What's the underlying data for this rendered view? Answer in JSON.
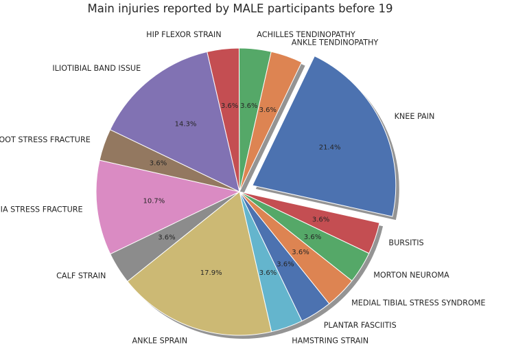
{
  "chart_data": {
    "type": "pie",
    "title": "Main injuries reported by MALE participants before 19",
    "slices": [
      {
        "label": "KNEE PAIN",
        "value": 21.4,
        "pct_label": "21.4%",
        "color": "#4c72b0",
        "explode": true
      },
      {
        "label": "BURSITIS",
        "value": 3.6,
        "pct_label": "3.6%",
        "color": "#c44e52"
      },
      {
        "label": "MORTON NEUROMA",
        "value": 3.6,
        "pct_label": "3.6%",
        "color": "#55a868"
      },
      {
        "label": "MEDIAL TIBIAL STRESS SYNDROME",
        "value": 3.6,
        "pct_label": "3.6%",
        "color": "#dd8452"
      },
      {
        "label": "PLANTAR FASCIITIS",
        "value": 3.6,
        "pct_label": "3.6%",
        "color": "#4c72b0"
      },
      {
        "label": "HAMSTRING STRAIN",
        "value": 3.6,
        "pct_label": "3.6%",
        "color": "#64b5cd"
      },
      {
        "label": "ANKLE SPRAIN",
        "value": 17.9,
        "pct_label": "17.9%",
        "color": "#ccb974"
      },
      {
        "label": "CALF STRAIN",
        "value": 3.6,
        "pct_label": "3.6%",
        "color": "#8c8c8c"
      },
      {
        "label": "TIBIA STRESS FRACTURE",
        "value": 10.7,
        "pct_label": "10.7%",
        "color": "#da8bc3"
      },
      {
        "label": "FOOT STRESS FRACTURE",
        "value": 3.6,
        "pct_label": "3.6%",
        "color": "#937860"
      },
      {
        "label": "ILIOTIBIAL BAND ISSUE",
        "value": 14.3,
        "pct_label": "14.3%",
        "color": "#8172b3"
      },
      {
        "label": "HIP FLEXOR STRAIN",
        "value": 3.6,
        "pct_label": "3.6%",
        "color": "#c44e52"
      },
      {
        "label": "ACHILLES TENDINOPATHY",
        "value": 3.6,
        "pct_label": "3.6%",
        "color": "#55a868"
      },
      {
        "label": "ANKLE TENDINOPATHY",
        "value": 3.6,
        "pct_label": "3.6%",
        "color": "#dd8452"
      }
    ],
    "start_angle_deg": 64.3,
    "direction": "clockwise",
    "shadow": true
  }
}
